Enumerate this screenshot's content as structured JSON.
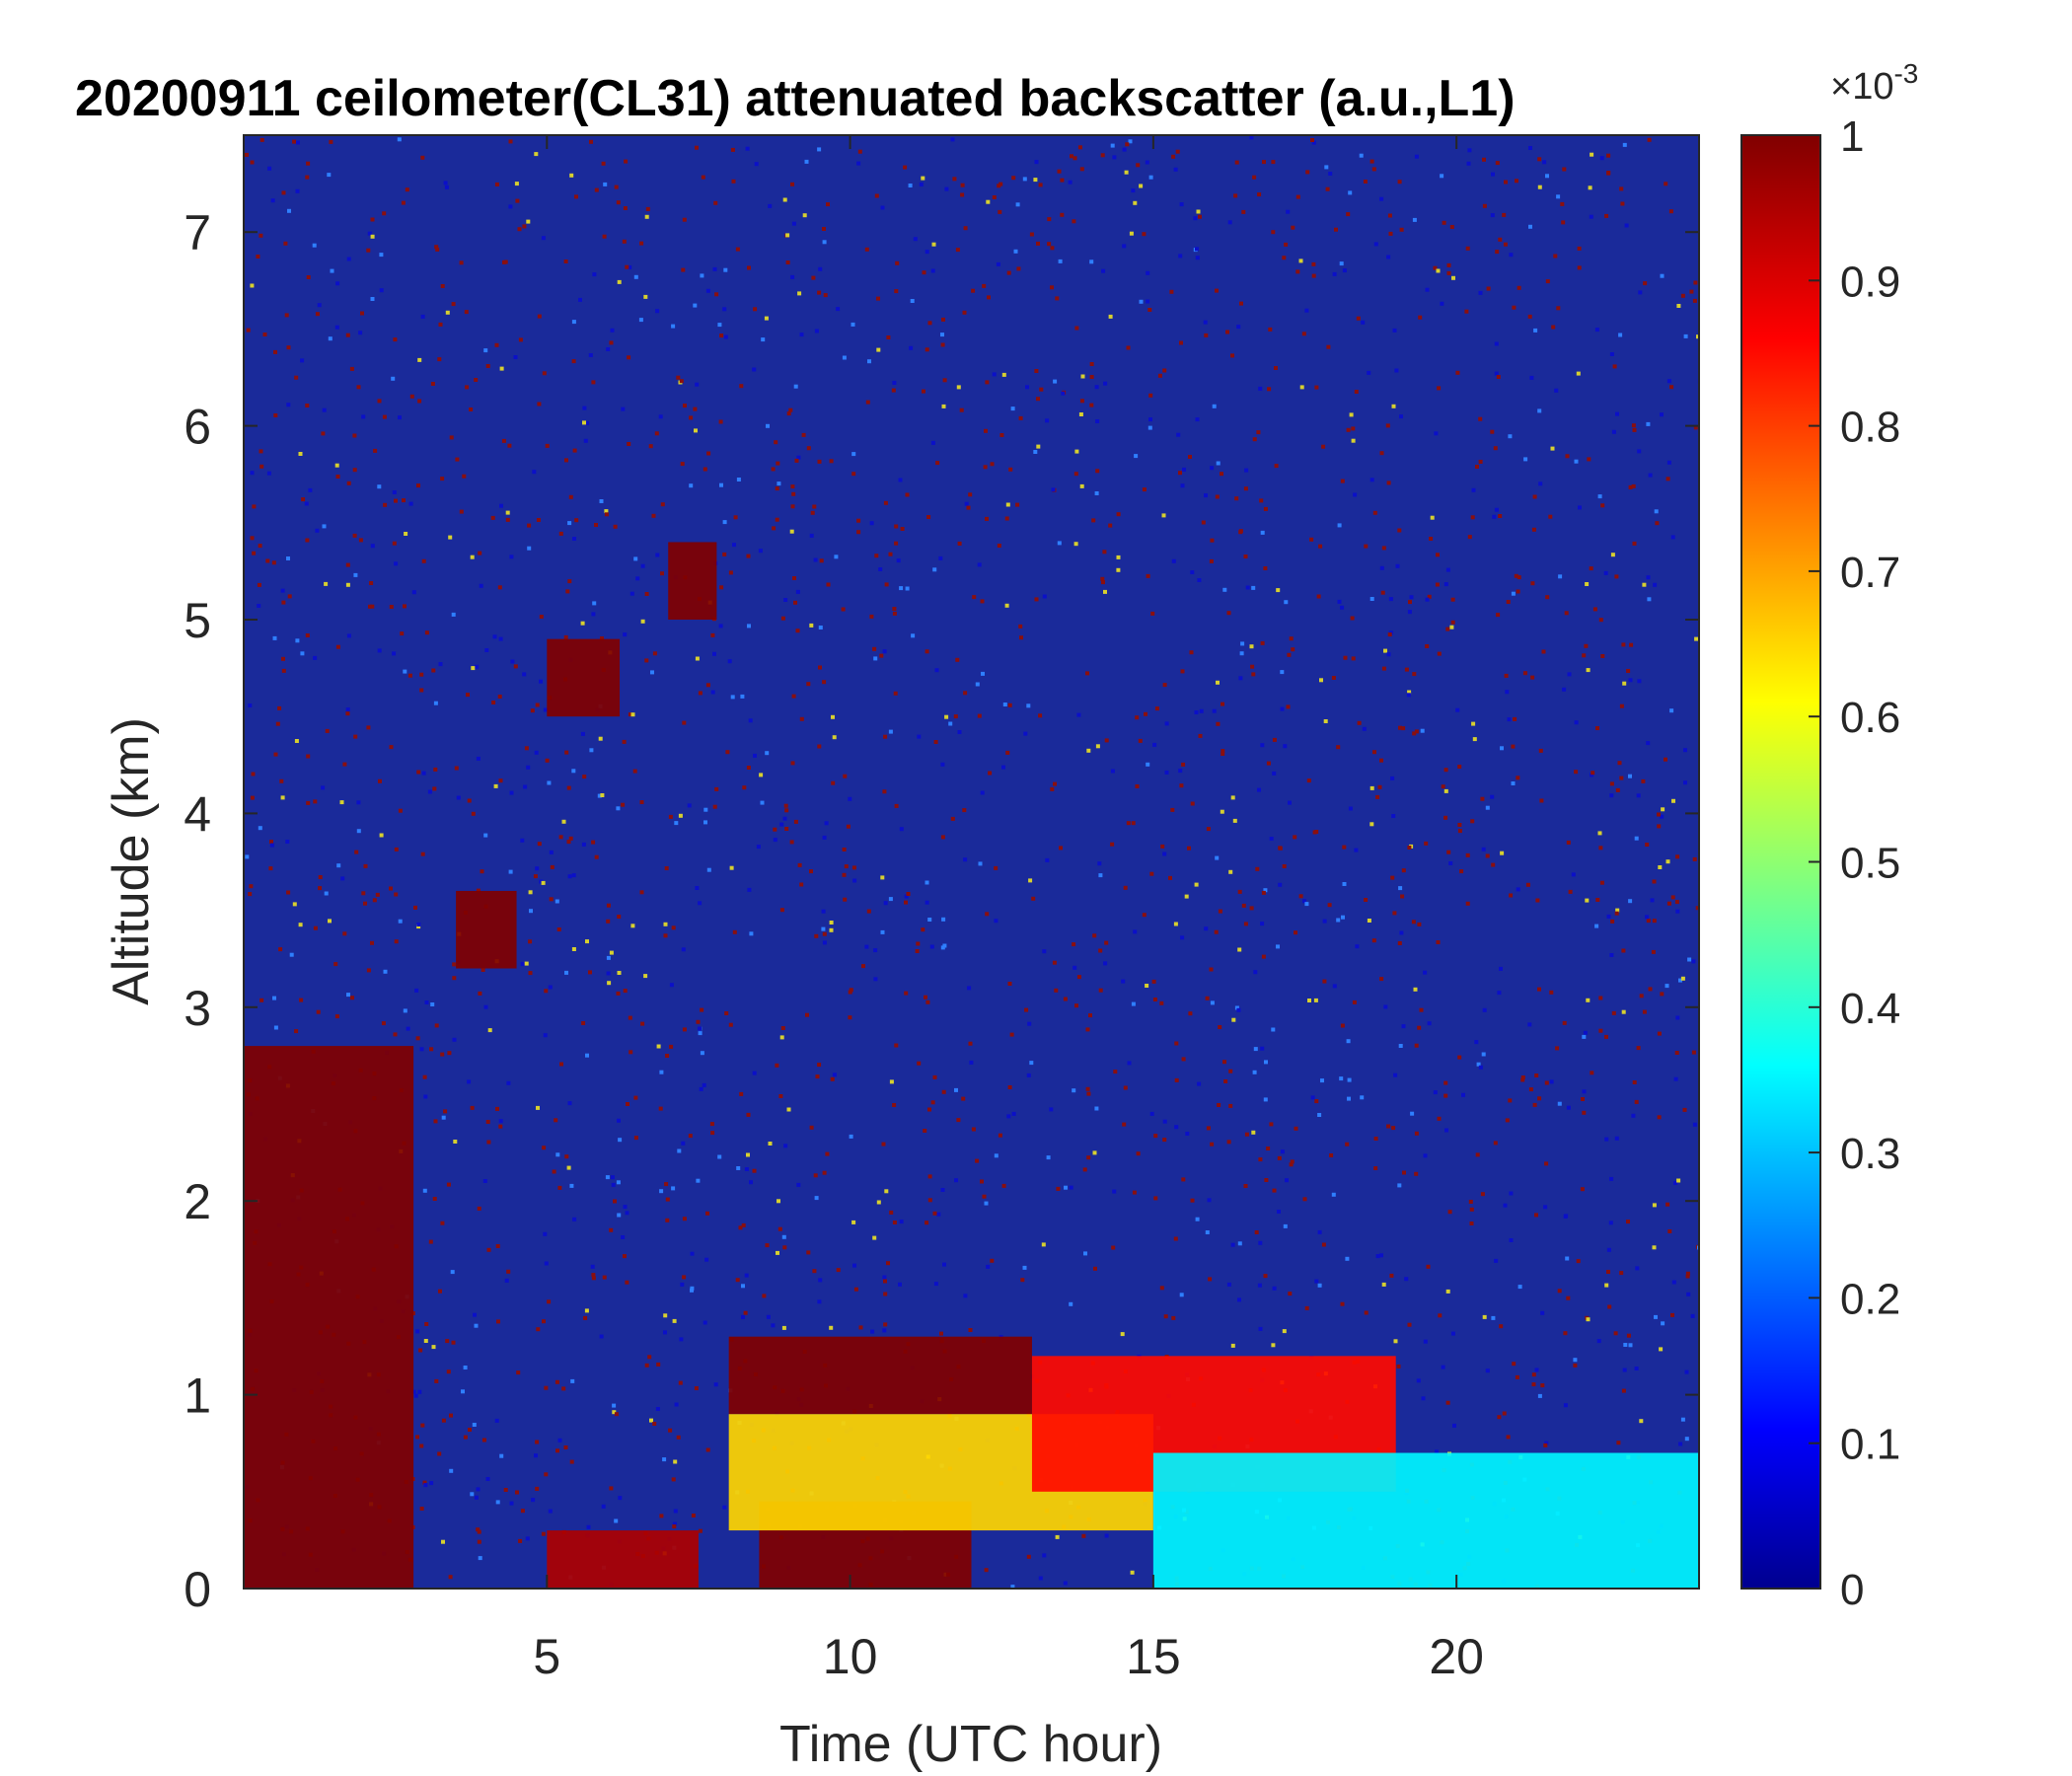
{
  "chart_data": {
    "type": "heatmap",
    "title": "20200911 ceilometer(CL31) attenuated backscatter (a.u.,L1)",
    "xlabel": "Time (UTC hour)",
    "ylabel": "Altitude (km)",
    "xlim": [
      0,
      24
    ],
    "ylim": [
      0,
      7.5
    ],
    "x_ticks": [
      5,
      10,
      15,
      20
    ],
    "y_ticks": [
      0,
      1,
      2,
      3,
      4,
      5,
      6,
      7
    ],
    "colorbar": {
      "range": [
        0,
        1
      ],
      "ticks": [
        0,
        0.1,
        0.2,
        0.3,
        0.4,
        0.5,
        0.6,
        0.7,
        0.8,
        0.9,
        1
      ],
      "tick_labels": [
        "0",
        "0.1",
        "0.2",
        "0.3",
        "0.4",
        "0.5",
        "0.6",
        "0.7",
        "0.8",
        "0.9",
        "1"
      ],
      "exponent_base": "×10",
      "exponent_power": "-3",
      "colormap": "jet"
    },
    "features": [
      {
        "x": [
          0,
          2.8
        ],
        "y": [
          0,
          2.8
        ],
        "value": 1.0
      },
      {
        "x": [
          5,
          7.5
        ],
        "y": [
          0,
          0.3
        ],
        "value": 0.95
      },
      {
        "x": [
          8.5,
          12
        ],
        "y": [
          0,
          0.45
        ],
        "value": 1.0
      },
      {
        "x": [
          8,
          13
        ],
        "y": [
          0.9,
          1.3
        ],
        "value": 1.0
      },
      {
        "x": [
          8,
          15
        ],
        "y": [
          0.3,
          0.9
        ],
        "value": 0.65
      },
      {
        "x": [
          13,
          19
        ],
        "y": [
          0.5,
          1.2
        ],
        "value": 0.85
      },
      {
        "x": [
          15,
          24
        ],
        "y": [
          0,
          0.7
        ],
        "value": 0.35
      },
      {
        "x": [
          7,
          7.8
        ],
        "y": [
          5,
          5.4
        ],
        "value": 1.0
      },
      {
        "x": [
          5,
          6.2
        ],
        "y": [
          4.5,
          4.9
        ],
        "value": 1.0
      },
      {
        "x": [
          3.5,
          4.5
        ],
        "y": [
          3.2,
          3.6
        ],
        "value": 1.0
      }
    ],
    "grid": false
  }
}
